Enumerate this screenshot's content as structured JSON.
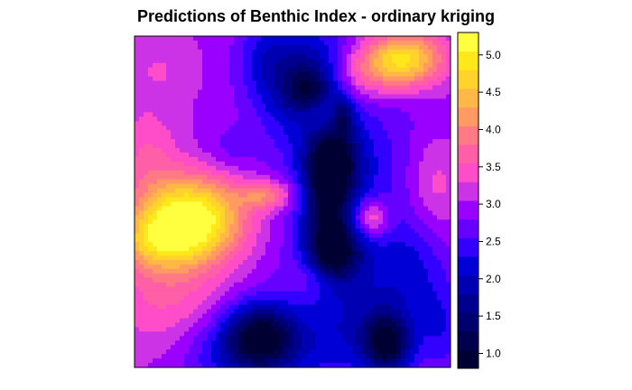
{
  "chart_data": {
    "type": "heatmap",
    "title": "Predictions of Benthic Index - ordinary kriging",
    "xlabel": "",
    "ylabel": "",
    "legend_position": "right",
    "colorbar": {
      "range": [
        0.8,
        5.3
      ],
      "ticks": [
        1.0,
        1.5,
        2.0,
        2.5,
        3.0,
        3.5,
        4.0,
        4.5,
        5.0
      ],
      "tick_labels": [
        "1.0",
        "1.5",
        "2.0",
        "2.5",
        "3.0",
        "3.5",
        "4.0",
        "4.5",
        "5.0"
      ]
    },
    "levels": [
      {
        "lo": 0.8,
        "hi": 1.05,
        "color": "#000033"
      },
      {
        "lo": 1.05,
        "hi": 1.3,
        "color": "#00004f"
      },
      {
        "lo": 1.3,
        "hi": 1.55,
        "color": "#00006e"
      },
      {
        "lo": 1.55,
        "hi": 1.8,
        "color": "#00008f"
      },
      {
        "lo": 1.8,
        "hi": 2.05,
        "color": "#0000b2"
      },
      {
        "lo": 2.05,
        "hi": 2.3,
        "color": "#0000d6"
      },
      {
        "lo": 2.3,
        "hi": 2.55,
        "color": "#3300ff"
      },
      {
        "lo": 2.55,
        "hi": 2.8,
        "color": "#6600ff"
      },
      {
        "lo": 2.8,
        "hi": 3.05,
        "color": "#9900ff"
      },
      {
        "lo": 3.05,
        "hi": 3.3,
        "color": "#cc33e6"
      },
      {
        "lo": 3.3,
        "hi": 3.55,
        "color": "#ff4cc9"
      },
      {
        "lo": 3.55,
        "hi": 3.8,
        "color": "#ff5fa6"
      },
      {
        "lo": 3.8,
        "hi": 4.05,
        "color": "#ff7a84"
      },
      {
        "lo": 4.05,
        "hi": 4.3,
        "color": "#ff9a63"
      },
      {
        "lo": 4.3,
        "hi": 4.55,
        "color": "#ffb847"
      },
      {
        "lo": 4.55,
        "hi": 4.8,
        "color": "#ffd32b"
      },
      {
        "lo": 4.8,
        "hi": 5.05,
        "color": "#ffe81a"
      },
      {
        "lo": 5.05,
        "hi": 5.3,
        "color": "#ffff40"
      }
    ],
    "field": {
      "background": 3.0,
      "features": [
        {
          "x": 0.18,
          "y": 0.55,
          "sx": 0.12,
          "sy": 0.09,
          "a": 2.3
        },
        {
          "x": 0.06,
          "y": 0.62,
          "sx": 0.1,
          "sy": 0.06,
          "a": 0.8
        },
        {
          "x": 0.1,
          "y": 0.78,
          "sx": 0.12,
          "sy": 0.14,
          "a": 0.6
        },
        {
          "x": 0.04,
          "y": 0.35,
          "sx": 0.07,
          "sy": 0.1,
          "a": 0.5
        },
        {
          "x": 0.42,
          "y": 0.48,
          "sx": 0.06,
          "sy": 0.03,
          "a": 1.0
        },
        {
          "x": 0.08,
          "y": 0.1,
          "sx": 0.08,
          "sy": 0.07,
          "a": 0.3
        },
        {
          "x": 0.85,
          "y": 0.07,
          "sx": 0.09,
          "sy": 0.06,
          "a": 2.0
        },
        {
          "x": 0.72,
          "y": 0.12,
          "sx": 0.07,
          "sy": 0.06,
          "a": 0.7
        },
        {
          "x": 0.75,
          "y": 0.55,
          "sx": 0.04,
          "sy": 0.04,
          "a": 1.1
        },
        {
          "x": 0.95,
          "y": 0.45,
          "sx": 0.06,
          "sy": 0.1,
          "a": 0.5
        },
        {
          "x": 0.58,
          "y": 0.23,
          "sx": 0.05,
          "sy": 0.04,
          "a": 0.5
        },
        {
          "x": 0.58,
          "y": 0.73,
          "sx": 0.05,
          "sy": 0.04,
          "a": 0.4
        },
        {
          "x": 0.52,
          "y": 0.13,
          "sx": 0.1,
          "sy": 0.12,
          "a": -1.1
        },
        {
          "x": 0.55,
          "y": 0.17,
          "sx": 0.05,
          "sy": 0.05,
          "a": -0.8
        },
        {
          "x": 0.66,
          "y": 0.24,
          "sx": 0.025,
          "sy": 0.04,
          "a": -0.9
        },
        {
          "x": 0.63,
          "y": 0.38,
          "sx": 0.06,
          "sy": 0.07,
          "a": -1.5
        },
        {
          "x": 0.61,
          "y": 0.53,
          "sx": 0.05,
          "sy": 0.12,
          "a": -1.4
        },
        {
          "x": 0.64,
          "y": 0.66,
          "sx": 0.06,
          "sy": 0.06,
          "a": -1.2
        },
        {
          "x": 0.68,
          "y": 0.5,
          "sx": 0.16,
          "sy": 0.35,
          "a": -0.7
        },
        {
          "x": 0.4,
          "y": 0.9,
          "sx": 0.08,
          "sy": 0.07,
          "a": -1.6
        },
        {
          "x": 0.36,
          "y": 0.96,
          "sx": 0.16,
          "sy": 0.08,
          "a": -0.9
        },
        {
          "x": 0.8,
          "y": 0.93,
          "sx": 0.05,
          "sy": 0.06,
          "a": -1.6
        },
        {
          "x": 0.75,
          "y": 0.88,
          "sx": 0.12,
          "sy": 0.1,
          "a": -0.6
        },
        {
          "x": 0.88,
          "y": 0.7,
          "sx": 0.08,
          "sy": 0.1,
          "a": -0.5
        },
        {
          "x": 0.98,
          "y": 0.88,
          "sx": 0.05,
          "sy": 0.1,
          "a": -0.5
        },
        {
          "x": 0.4,
          "y": 0.06,
          "sx": 0.06,
          "sy": 0.08,
          "a": -0.4
        },
        {
          "x": 0.3,
          "y": 0.34,
          "sx": 0.06,
          "sy": 0.05,
          "a": -0.3
        }
      ]
    }
  }
}
